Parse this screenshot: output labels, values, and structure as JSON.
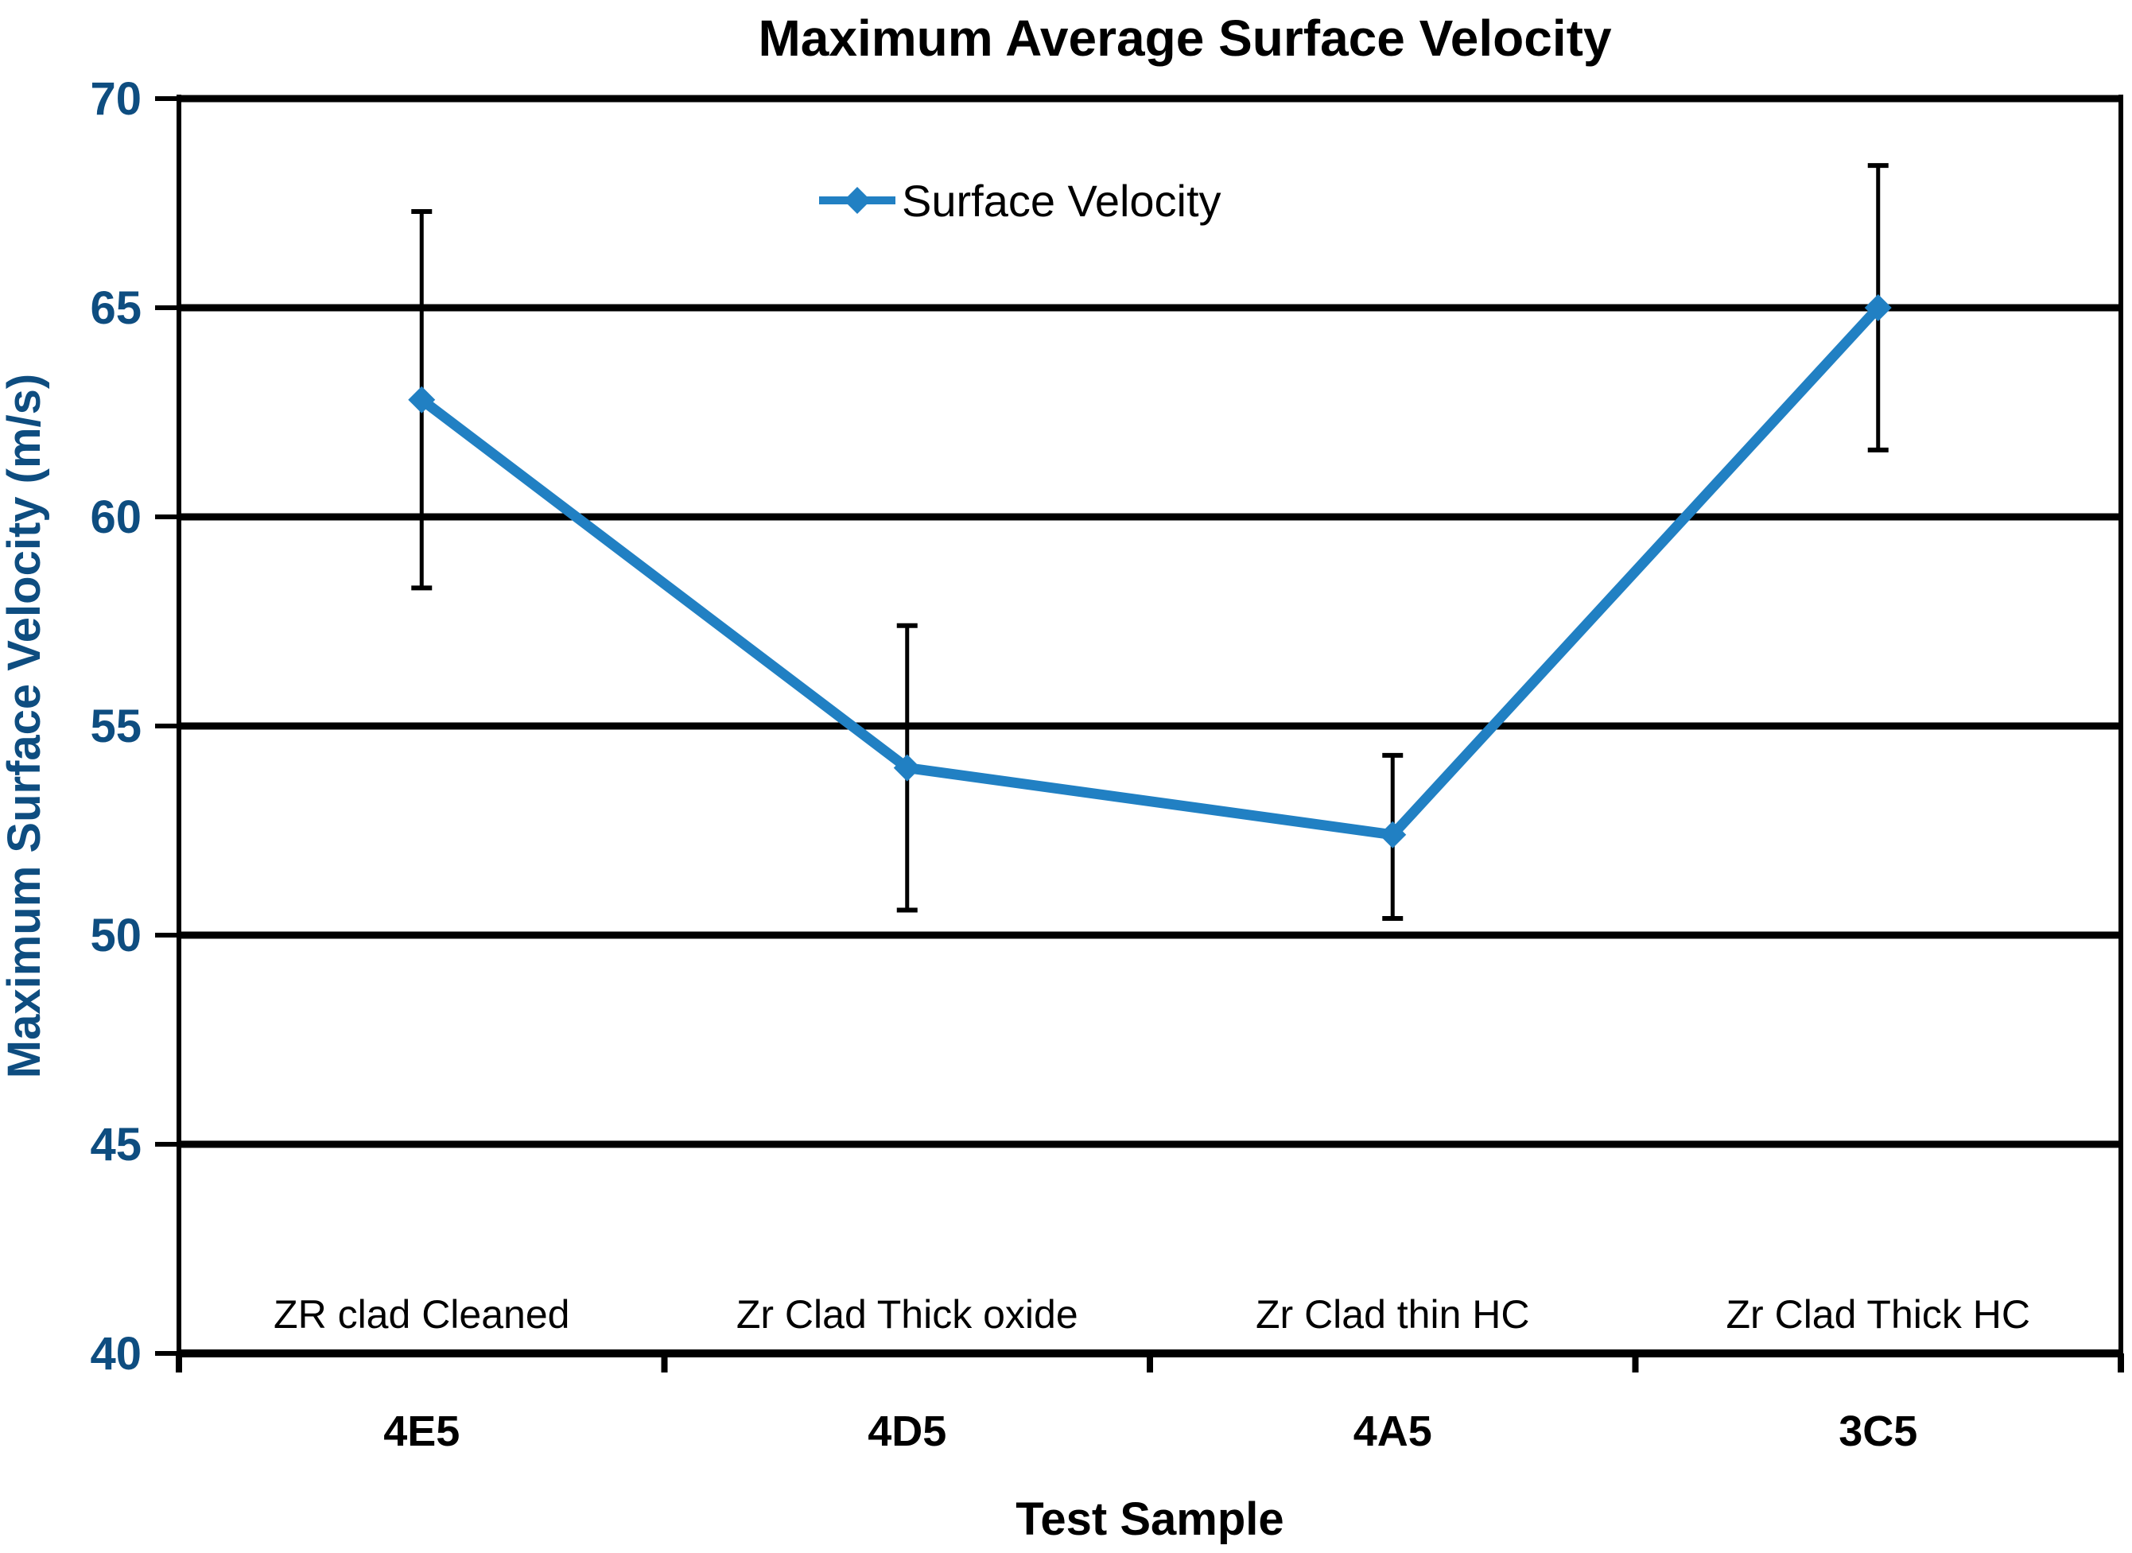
{
  "title": "Maximum Average Surface Velocity",
  "axes": {
    "y_title": "Maximum Surface Velocity (m/s)",
    "x_title": "Test Sample",
    "y_ticks": [
      70,
      65,
      60,
      55,
      50,
      45,
      40
    ],
    "y_min": 40,
    "y_max": 70
  },
  "legend": {
    "label": "Surface Velocity"
  },
  "colors": {
    "series": "#2180C3",
    "axis_text": "#0E4D80",
    "grid": "#000000",
    "background": "#FFFFFF"
  },
  "chart_data": {
    "type": "line",
    "title": "Maximum Average Surface Velocity",
    "xlabel": "Test Sample",
    "ylabel": "Maximum Surface Velocity (m/s)",
    "ylim": [
      40,
      70
    ],
    "y_tick_step": 5,
    "grid": "horizontal",
    "legend_position": "top-center-inside",
    "categories": [
      "4E5",
      "4D5",
      "4A5",
      "3C5"
    ],
    "point_labels": [
      "ZR clad Cleaned",
      "Zr Clad Thick oxide",
      "Zr Clad thin HC",
      "Zr Clad Thick HC"
    ],
    "series": [
      {
        "name": "Surface Velocity",
        "marker": "diamond",
        "color": "#2180C3",
        "values": [
          62.8,
          54.0,
          52.4,
          65.0
        ],
        "error_upper": [
          67.3,
          57.4,
          54.3,
          68.4
        ],
        "error_lower": [
          58.3,
          50.6,
          50.4,
          61.6
        ]
      }
    ]
  }
}
